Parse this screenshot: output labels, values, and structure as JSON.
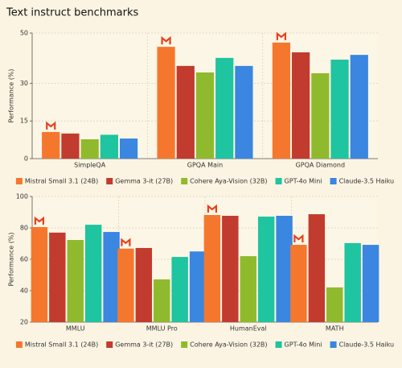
{
  "chart_data": [
    {
      "type": "bar",
      "title": "Text instruct benchmarks",
      "y_label": "Performance (%)",
      "categories": [
        "SimpleQA",
        "GPQA Main",
        "GPQA Diamond"
      ],
      "series": [
        {
          "name": "Mistral Small 3.1 (24B)",
          "color": "#f5772e",
          "values": [
            10.6,
            44.5,
            46.2
          ]
        },
        {
          "name": "Gemma 3-it (27B)",
          "color": "#c23b2f",
          "values": [
            10.0,
            36.9,
            42.3
          ]
        },
        {
          "name": "Cohere Aya-Vision (32B)",
          "color": "#8fba2e",
          "values": [
            7.7,
            34.3,
            34.0
          ]
        },
        {
          "name": "GPT-4o Mini",
          "color": "#1fc4a0",
          "values": [
            9.5,
            40.1,
            39.4
          ]
        },
        {
          "name": "Claude-3.5 Haiku",
          "color": "#3a86e0",
          "values": [
            8.0,
            36.9,
            41.3
          ]
        }
      ],
      "ylim": [
        0,
        50
      ],
      "yticks": [
        0,
        15,
        30,
        50
      ],
      "grid": true,
      "legend": "bottom"
    },
    {
      "type": "bar",
      "y_label": "Performance (%)",
      "categories": [
        "MMLU",
        "MMLU Pro",
        "HumanEval",
        "MATH"
      ],
      "series": [
        {
          "name": "Mistral Small 3.1 (24B)",
          "color": "#f5772e",
          "values": [
            80.5,
            66.8,
            88.2,
            69.2
          ]
        },
        {
          "name": "Gemma 3-it (27B)",
          "color": "#c23b2f",
          "values": [
            77.0,
            67.2,
            87.7,
            88.7
          ]
        },
        {
          "name": "Cohere Aya-Vision (32B)",
          "color": "#8fba2e",
          "values": [
            72.3,
            47.2,
            62.0,
            42.1
          ]
        },
        {
          "name": "GPT-4o Mini",
          "color": "#1fc4a0",
          "values": [
            82.0,
            61.5,
            87.2,
            70.3
          ]
        },
        {
          "name": "Claude-3.5 Haiku",
          "color": "#3a86e0",
          "values": [
            77.4,
            65.0,
            87.7,
            69.2
          ]
        }
      ],
      "ylim": [
        20,
        100
      ],
      "yticks": [
        20,
        40,
        60,
        80,
        100
      ],
      "grid": true,
      "legend": "bottom"
    }
  ]
}
